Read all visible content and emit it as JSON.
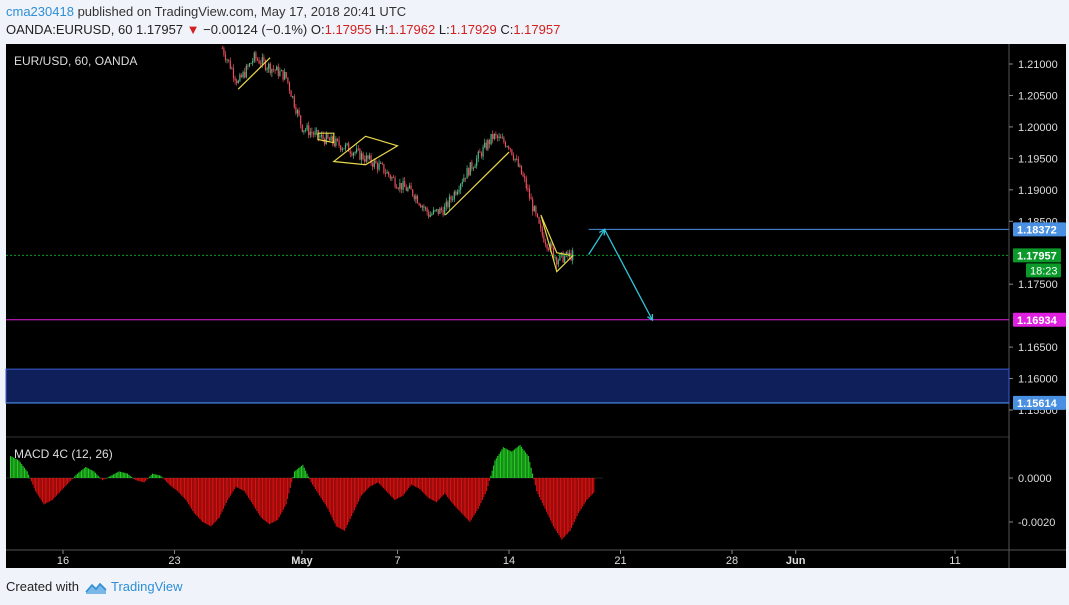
{
  "header": {
    "user": "cma230418",
    "published_text": "published on TradingView.com, May 17, 2018 20:41 UTC",
    "symbol": "OANDA:EURUSD, 60",
    "last": "1.17957",
    "change_arrow": "▼",
    "change": "−0.00124 (−0.1%)",
    "o_label": "O:",
    "o": "1.17955",
    "h_label": "H:",
    "h": "1.17962",
    "l_label": "L:",
    "l": "1.17929",
    "c_label": "C:",
    "c": "1.17957"
  },
  "footer": {
    "created_with": "Created with",
    "brand": "TradingView",
    "icon": "tradingview-logo-icon"
  },
  "colors": {
    "background": "#000000",
    "up_candle": "#53b987",
    "down_candle": "#eb4d5c",
    "pattern_lines": "#e8d84a",
    "projection": "#2ec4d8",
    "resistance_line": "#4a90e2",
    "target_line": "#e020e0",
    "zone_fill": "#0e1f5a",
    "price_label": "#0a9a2a",
    "macd_up": "#22cc22",
    "macd_down": "#dd1111"
  },
  "chart_data": [
    {
      "type": "candlestick",
      "title": "EUR/USD, 60, OANDA",
      "ylim": [
        1.155,
        1.2125
      ],
      "y_ticks": [
        "1.21000",
        "1.20500",
        "1.20000",
        "1.19500",
        "1.19000",
        "1.18500",
        "1.17500",
        "1.16500",
        "1.16000",
        "1.15500"
      ],
      "y_tick_values": [
        1.21,
        1.205,
        1.2,
        1.195,
        1.19,
        1.185,
        1.175,
        1.165,
        1.16,
        1.155
      ],
      "x_ticks": [
        "16",
        "23",
        "May",
        "7",
        "14",
        "21",
        "28",
        "Jun",
        "11"
      ],
      "x_tick_dates": [
        "2018-04-16",
        "2018-04-23",
        "2018-05-01",
        "2018-05-07",
        "2018-05-14",
        "2018-05-21",
        "2018-05-28",
        "2018-06-01",
        "2018-06-11"
      ],
      "price_points": [
        [
          "2018-04-26",
          1.2125
        ],
        [
          "2018-04-27",
          1.207
        ],
        [
          "2018-04-28",
          1.211
        ],
        [
          "2018-04-30",
          1.208
        ],
        [
          "2018-05-01",
          1.2
        ],
        [
          "2018-05-02",
          1.1985
        ],
        [
          "2018-05-03",
          1.1975
        ],
        [
          "2018-05-04",
          1.1965
        ],
        [
          "2018-05-06",
          1.1935
        ],
        [
          "2018-05-07",
          1.191
        ],
        [
          "2018-05-08",
          1.1895
        ],
        [
          "2018-05-09",
          1.186
        ],
        [
          "2018-05-10",
          1.187
        ],
        [
          "2018-05-11",
          1.1915
        ],
        [
          "2018-05-12",
          1.195
        ],
        [
          "2018-05-13",
          1.1985
        ],
        [
          "2018-05-14",
          1.1972
        ],
        [
          "2018-05-15",
          1.1912
        ],
        [
          "2018-05-16",
          1.1832
        ],
        [
          "2018-05-17",
          1.179
        ],
        [
          "2018-05-18",
          1.1796
        ]
      ],
      "levels": [
        {
          "label": "1.18372",
          "value": 1.18372,
          "color": "#4a90e2"
        },
        {
          "label": "1.17957",
          "value": 1.17957,
          "color": "#0a9a2a",
          "sub": "18:23"
        },
        {
          "label": "1.16934",
          "value": 1.16934,
          "color": "#e020e0"
        },
        {
          "label": "1.15614",
          "value": 1.15614,
          "color": "#4a90e2"
        }
      ],
      "zone": {
        "from": 1.1561,
        "to": 1.1615
      },
      "patterns": [
        {
          "name": "flag-1",
          "points": [
            [
              "2018-04-27",
              1.206
            ],
            [
              "2018-04-29",
              1.211
            ]
          ]
        },
        {
          "name": "triangle-1",
          "points": [
            [
              "2018-05-02",
              1.199
            ],
            [
              "2018-05-03",
              1.199
            ],
            [
              "2018-05-03",
              1.1975
            ],
            [
              "2018-05-02",
              1.198
            ]
          ]
        },
        {
          "name": "wedge-2",
          "points": [
            [
              "2018-05-05",
              1.1985
            ],
            [
              "2018-05-07",
              1.197
            ],
            [
              "2018-05-05",
              1.194
            ],
            [
              "2018-05-03",
              1.1945
            ]
          ]
        },
        {
          "name": "channel-up",
          "points": [
            [
              "2018-05-10",
              1.186
            ],
            [
              "2018-05-14",
              1.196
            ]
          ]
        },
        {
          "name": "pattern-low",
          "points": [
            [
              "2018-05-16",
              1.186
            ],
            [
              "2018-05-17",
              1.18
            ],
            [
              "2018-05-18",
              1.1795
            ],
            [
              "2018-05-17",
              1.177
            ]
          ]
        }
      ],
      "projection": [
        [
          "2018-05-19",
          1.1797
        ],
        [
          "2018-05-20",
          1.1837
        ],
        [
          "2018-05-23",
          1.1693
        ]
      ]
    },
    {
      "type": "bar",
      "title": "MACD 4C (12, 26)",
      "ylim": [
        -0.003,
        0.0015
      ],
      "y_ticks": [
        "0.0000",
        "-0.0020"
      ],
      "y_tick_values": [
        0.0,
        -0.002
      ],
      "values": [
        0.001,
        0.0008,
        0.0003,
        -0.0006,
        -0.0012,
        -0.001,
        -0.0006,
        -0.0002,
        0.0002,
        0.0005,
        0.0003,
        -0.0001,
        0.0001,
        0.0003,
        0.0002,
        -0.0001,
        -0.0002,
        0.0002,
        0.0001,
        -0.0003,
        -0.0006,
        -0.001,
        -0.0016,
        -0.002,
        -0.0022,
        -0.0018,
        -0.001,
        -0.0004,
        -0.0006,
        -0.0012,
        -0.0018,
        -0.0021,
        -0.0019,
        -0.0012,
        0.0003,
        0.0006,
        -0.0002,
        -0.0008,
        -0.0014,
        -0.0022,
        -0.0024,
        -0.0016,
        -0.0008,
        -0.0004,
        -0.0002,
        -0.0006,
        -0.001,
        -0.0008,
        -0.0003,
        -0.0005,
        -0.0009,
        -0.0011,
        -0.0007,
        -0.0012,
        -0.0016,
        -0.002,
        -0.0014,
        -0.0006,
        0.0008,
        0.0014,
        0.0012,
        0.0015,
        0.001,
        -0.0006,
        -0.0014,
        -0.0022,
        -0.0028,
        -0.0024,
        -0.0016,
        -0.001,
        -0.0006
      ]
    }
  ]
}
